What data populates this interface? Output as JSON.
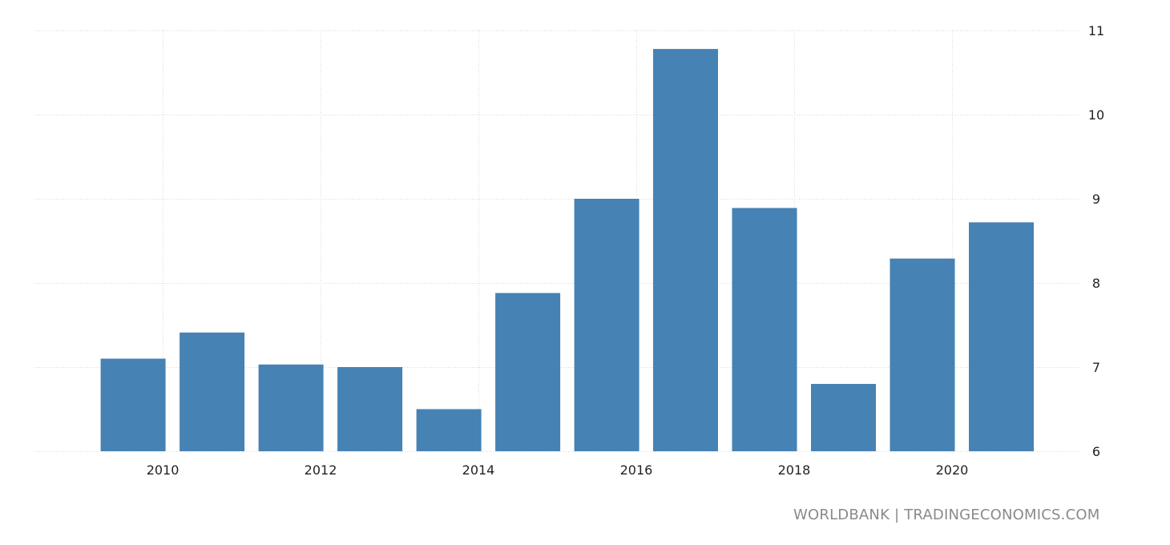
{
  "chart_data": {
    "type": "bar",
    "x": [
      2009.625,
      2010.625,
      2011.625,
      2012.625,
      2013.625,
      2014.625,
      2015.625,
      2016.625,
      2017.625,
      2018.625,
      2019.625,
      2020.625
    ],
    "values": [
      7.1,
      7.41,
      7.03,
      7.0,
      6.5,
      7.88,
      9.0,
      10.78,
      8.89,
      6.8,
      8.29,
      8.72
    ],
    "xticks": [
      2010,
      2012,
      2014,
      2016,
      2018,
      2020
    ],
    "xtick_labels": [
      "2010",
      "2012",
      "2014",
      "2016",
      "2018",
      "2020"
    ],
    "yticks": [
      6,
      7,
      8,
      9,
      10,
      11
    ],
    "ytick_labels": [
      "6",
      "7",
      "8",
      "9",
      "10",
      "11"
    ],
    "ylim": [
      6,
      11
    ],
    "xlim": [
      2008.375,
      2021.625
    ],
    "y_axis_side": "right",
    "grid": true,
    "bar_color": "#4682b4",
    "grid_color": "#d9d9d9"
  },
  "source_text": "WORLDBANK | TRADINGECONOMICS.COM"
}
